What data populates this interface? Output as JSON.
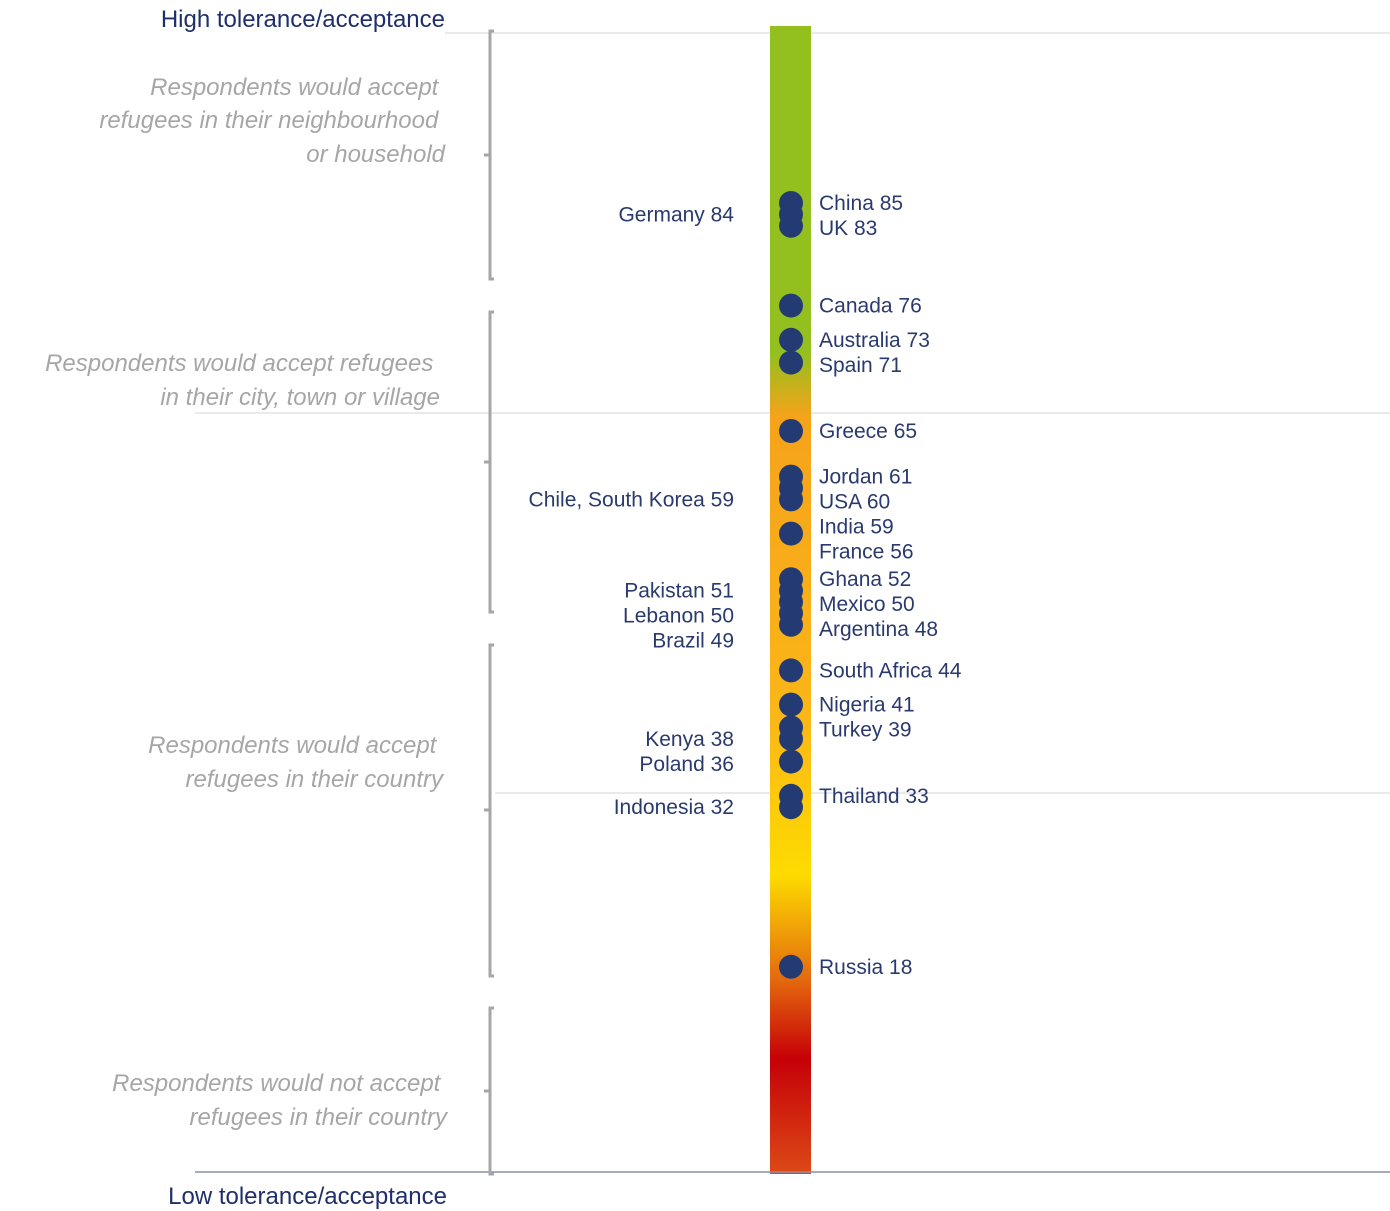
{
  "labels": {
    "top": "High tolerance/acceptance",
    "bottom": "Low tolerance/acceptance"
  },
  "bands": [
    {
      "id": "neighbourhood",
      "lines": [
        "Respondents would accept",
        "refugees in their neighbourhood",
        "or household"
      ]
    },
    {
      "id": "city",
      "lines": [
        "Respondents would accept refugees",
        "in their city, town or village"
      ]
    },
    {
      "id": "country",
      "lines": [
        "Respondents would accept",
        "refugees in their country"
      ]
    },
    {
      "id": "not-country",
      "lines": [
        "Respondents would not accept",
        "refugees in their country"
      ]
    }
  ],
  "chart_data": {
    "type": "scatter",
    "ylim": [
      0,
      100
    ],
    "gradient_colors": [
      "#93c01f",
      "#f5a31a",
      "#fbb618",
      "#fddb00",
      "#e46a0e",
      "#c60008",
      "#dc4a17"
    ],
    "points": [
      {
        "country": "China",
        "value": 85,
        "side": "right"
      },
      {
        "country": "Germany",
        "value": 84,
        "side": "left"
      },
      {
        "country": "UK",
        "value": 83,
        "side": "right"
      },
      {
        "country": "Canada",
        "value": 76,
        "side": "right"
      },
      {
        "country": "Australia",
        "value": 73,
        "side": "right"
      },
      {
        "country": "Spain",
        "value": 71,
        "side": "right"
      },
      {
        "country": "Greece",
        "value": 65,
        "side": "right"
      },
      {
        "country": "Jordan",
        "value": 61,
        "side": "right"
      },
      {
        "country": "USA",
        "value": 60,
        "side": "right"
      },
      {
        "country": "India",
        "value": 59,
        "side": "right"
      },
      {
        "country": "Chile, South Korea",
        "value": 59,
        "side": "left"
      },
      {
        "country": "France",
        "value": 56,
        "side": "right"
      },
      {
        "country": "Ghana",
        "value": 52,
        "side": "right"
      },
      {
        "country": "Pakistan",
        "value": 51,
        "side": "left"
      },
      {
        "country": "Lebanon",
        "value": 50,
        "side": "left"
      },
      {
        "country": "Mexico",
        "value": 50,
        "side": "right"
      },
      {
        "country": "Brazil",
        "value": 49,
        "side": "left"
      },
      {
        "country": "Argentina",
        "value": 48,
        "side": "right"
      },
      {
        "country": "South Africa",
        "value": 44,
        "side": "right"
      },
      {
        "country": "Nigeria",
        "value": 41,
        "side": "right"
      },
      {
        "country": "Turkey",
        "value": 39,
        "side": "right"
      },
      {
        "country": "Kenya",
        "value": 38,
        "side": "left"
      },
      {
        "country": "Poland",
        "value": 36,
        "side": "left"
      },
      {
        "country": "Thailand",
        "value": 33,
        "side": "right"
      },
      {
        "country": "Indonesia",
        "value": 32,
        "side": "left"
      },
      {
        "country": "Russia",
        "value": 18,
        "side": "right"
      }
    ]
  }
}
